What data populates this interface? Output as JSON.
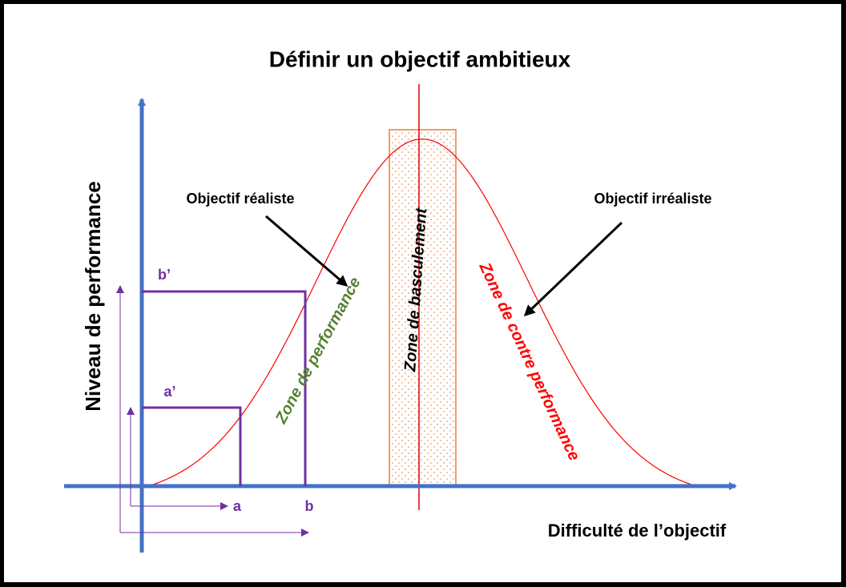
{
  "title": "Définir un objectif ambitieux",
  "y_axis_label": "Niveau de performance",
  "x_axis_label": "Difficulté de l’objectif",
  "points": {
    "a": "a",
    "b": "b",
    "a_prime": "a’",
    "b_prime": "b’"
  },
  "zones": {
    "performance": "Zone de performance",
    "tipping": "Zone de basculement",
    "counter": "Zone de contre performance"
  },
  "annotations": {
    "realistic": "Objectif réaliste",
    "unrealistic": "Objectif irréaliste"
  }
}
